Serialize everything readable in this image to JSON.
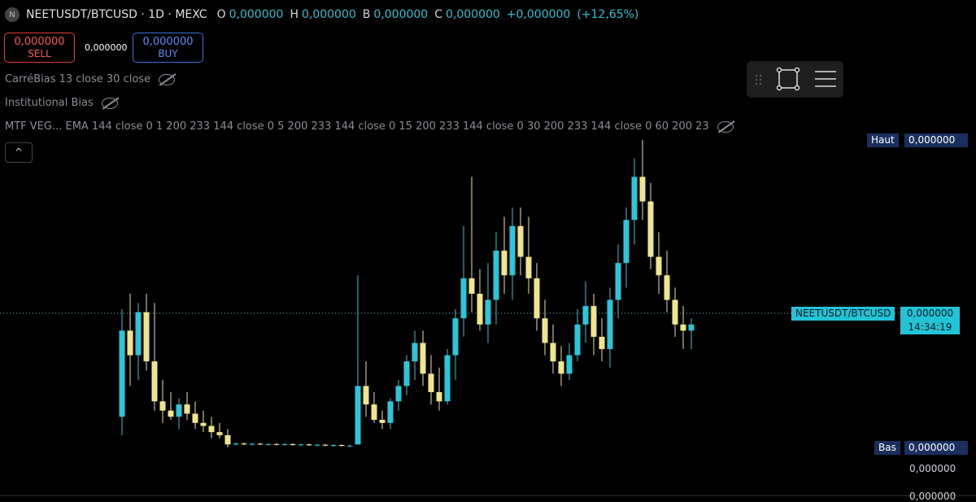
{
  "header": {
    "logo": "N",
    "symbol": "NEETUSDT/BTCUSD · 1D · MEXC",
    "open_label": "O",
    "open": "0,000000",
    "high_label": "H",
    "high": "0,000000",
    "low_label": "B",
    "low": "0,000000",
    "close_label": "C",
    "close": "0,000000",
    "change": "+0,000000",
    "change_pct": "(+12,65%)"
  },
  "trade": {
    "sell_price": "0,000000",
    "sell": "SELL",
    "spread": "0,000000",
    "buy_price": "0,000000",
    "buy": "BUY"
  },
  "indicators": [
    "CarréBias 13 close 30 close",
    "Institutional Bias",
    "MTF VEG...  EMA 144 close 0 1 200 233 144 close 0 5 200 233 144 close 0 15 200 233 144 close 0 30 200 233 144 close 0 60 200 23"
  ],
  "price_scale": {
    "high_label": "Haut",
    "high_value": "0,000000",
    "symbol_label": "NEETUSDT/BTCUSD",
    "last_value": "0,000000",
    "countdown": "14:34:19",
    "low_label": "Bas",
    "low_value": "0,000000",
    "tick": "0,000000",
    "tick_bottom": "0,000000"
  },
  "chart": {
    "ylim": [
      0,
      100
    ],
    "up_color": "#2ec5d8",
    "down_color": "#efe58c",
    "candles": [
      [
        10,
        45,
        4,
        38
      ],
      [
        38,
        50,
        20,
        30
      ],
      [
        30,
        47,
        22,
        44
      ],
      [
        44,
        50,
        25,
        28
      ],
      [
        28,
        47,
        12,
        15
      ],
      [
        15,
        22,
        8,
        12
      ],
      [
        12,
        18,
        9,
        10
      ],
      [
        10,
        16,
        6,
        14
      ],
      [
        14,
        18,
        9,
        11
      ],
      [
        11,
        15,
        6,
        8
      ],
      [
        8,
        12,
        5,
        7
      ],
      [
        7,
        10,
        3,
        5
      ],
      [
        5,
        8,
        3,
        4
      ],
      [
        4,
        6,
        0,
        1
      ],
      [
        1,
        1.6,
        0.6,
        1.3
      ],
      [
        1.3,
        1.7,
        0.8,
        1
      ],
      [
        1,
        1.5,
        0.6,
        1.2
      ],
      [
        1.2,
        1.6,
        0.8,
        1
      ],
      [
        1,
        1.4,
        0.6,
        1.1
      ],
      [
        1.1,
        1.5,
        0.7,
        0.9
      ],
      [
        0.9,
        1.3,
        0.5,
        1.1
      ],
      [
        1.1,
        1.4,
        0.6,
        0.8
      ],
      [
        0.8,
        1.2,
        0.4,
        1
      ],
      [
        1,
        1.3,
        0.5,
        0.7
      ],
      [
        0.7,
        1.1,
        0.3,
        0.9
      ],
      [
        0.9,
        1.2,
        0.4,
        0.6
      ],
      [
        0.6,
        1,
        0.2,
        0.8
      ],
      [
        0.8,
        1.1,
        0.3,
        0.5
      ],
      [
        0.5,
        0.9,
        0.2,
        0.6
      ],
      [
        1,
        56,
        1,
        20
      ],
      [
        20,
        28,
        10,
        14
      ],
      [
        14,
        18,
        8,
        9
      ],
      [
        9,
        12,
        6,
        8
      ],
      [
        8,
        16,
        6,
        15
      ],
      [
        15,
        22,
        12,
        20
      ],
      [
        20,
        30,
        17,
        28
      ],
      [
        28,
        38,
        22,
        34
      ],
      [
        34,
        38,
        20,
        24
      ],
      [
        24,
        30,
        14,
        18
      ],
      [
        18,
        26,
        12,
        15
      ],
      [
        15,
        32,
        14,
        30
      ],
      [
        30,
        45,
        22,
        42
      ],
      [
        42,
        72,
        36,
        55
      ],
      [
        55,
        88,
        44,
        50
      ],
      [
        50,
        58,
        38,
        40
      ],
      [
        40,
        60,
        34,
        48
      ],
      [
        48,
        70,
        40,
        64
      ],
      [
        64,
        75,
        50,
        56
      ],
      [
        56,
        78,
        48,
        72
      ],
      [
        72,
        78,
        56,
        62
      ],
      [
        62,
        75,
        50,
        55
      ],
      [
        55,
        60,
        38,
        42
      ],
      [
        42,
        48,
        30,
        34
      ],
      [
        34,
        40,
        24,
        28
      ],
      [
        28,
        33,
        20,
        24
      ],
      [
        24,
        34,
        22,
        30
      ],
      [
        30,
        45,
        28,
        40
      ],
      [
        40,
        54,
        34,
        46
      ],
      [
        46,
        50,
        30,
        36
      ],
      [
        36,
        42,
        28,
        32
      ],
      [
        32,
        52,
        26,
        48
      ],
      [
        48,
        66,
        42,
        60
      ],
      [
        60,
        78,
        52,
        74
      ],
      [
        74,
        94,
        66,
        88
      ],
      [
        88,
        100,
        74,
        80
      ],
      [
        80,
        86,
        58,
        62
      ],
      [
        62,
        70,
        50,
        56
      ],
      [
        56,
        64,
        44,
        48
      ],
      [
        48,
        52,
        36,
        40
      ],
      [
        40,
        46,
        32,
        38
      ],
      [
        38,
        42,
        32,
        40
      ]
    ]
  }
}
